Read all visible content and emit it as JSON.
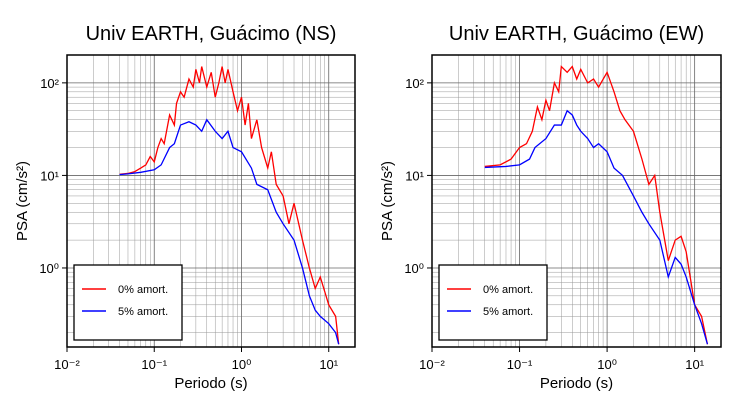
{
  "chart_data": [
    {
      "type": "line",
      "title": "Univ EARTH, Guácimo (NS)",
      "xlabel": "Periodo (s)",
      "ylabel": "PSA (cm/s²)",
      "xlog": true,
      "ylog": true,
      "grid": true,
      "legend": "lower left",
      "xlim": [
        0.01,
        20
      ],
      "ylim": [
        0.14,
        200
      ],
      "xticks": [
        {
          "value": 0.01,
          "label": "10⁻²"
        },
        {
          "value": 0.1,
          "label": "10⁻¹"
        },
        {
          "value": 1,
          "label": "10⁰"
        },
        {
          "value": 10,
          "label": "10¹"
        }
      ],
      "yticks": [
        {
          "value": 1,
          "label": "10⁰"
        },
        {
          "value": 10,
          "label": "10¹"
        },
        {
          "value": 100,
          "label": "10²"
        }
      ],
      "series": [
        {
          "name": "0% amort.",
          "color": "#ff0000",
          "x": [
            0.04,
            0.05,
            0.06,
            0.07,
            0.08,
            0.09,
            0.1,
            0.11,
            0.12,
            0.13,
            0.15,
            0.17,
            0.18,
            0.2,
            0.22,
            0.25,
            0.28,
            0.3,
            0.33,
            0.35,
            0.4,
            0.45,
            0.5,
            0.55,
            0.6,
            0.65,
            0.7,
            0.8,
            0.9,
            1.0,
            1.1,
            1.2,
            1.3,
            1.5,
            1.7,
            2.0,
            2.2,
            2.5,
            3,
            3.5,
            4,
            5,
            6,
            7,
            8,
            10,
            12,
            13
          ],
          "values": [
            10.3,
            10.5,
            11,
            12,
            13,
            16,
            14,
            20,
            25,
            22,
            45,
            35,
            60,
            80,
            70,
            110,
            90,
            140,
            100,
            150,
            90,
            130,
            70,
            100,
            150,
            100,
            140,
            80,
            50,
            70,
            35,
            60,
            25,
            40,
            20,
            12,
            18,
            8,
            6,
            3,
            5,
            2,
            1,
            0.6,
            0.8,
            0.4,
            0.3,
            0.15
          ]
        },
        {
          "name": "5% amort.",
          "color": "#0000ff",
          "x": [
            0.04,
            0.05,
            0.07,
            0.1,
            0.12,
            0.15,
            0.17,
            0.2,
            0.25,
            0.3,
            0.35,
            0.4,
            0.5,
            0.6,
            0.7,
            0.8,
            1.0,
            1.3,
            1.5,
            2,
            2.5,
            3,
            4,
            5,
            6,
            7,
            8,
            10,
            12,
            13
          ],
          "values": [
            10.2,
            10.4,
            10.8,
            11.5,
            13,
            20,
            22,
            35,
            38,
            35,
            30,
            40,
            30,
            25,
            30,
            20,
            18,
            12,
            8,
            7,
            4,
            3,
            2,
            1,
            0.5,
            0.35,
            0.3,
            0.25,
            0.2,
            0.15
          ]
        }
      ]
    },
    {
      "type": "line",
      "title": "Univ EARTH, Guácimo (EW)",
      "xlabel": "Periodo (s)",
      "ylabel": "PSA (cm/s²)",
      "xlog": true,
      "ylog": true,
      "grid": true,
      "legend": "lower left",
      "xlim": [
        0.01,
        20
      ],
      "ylim": [
        0.14,
        200
      ],
      "xticks": [
        {
          "value": 0.01,
          "label": "10⁻²"
        },
        {
          "value": 0.1,
          "label": "10⁻¹"
        },
        {
          "value": 1,
          "label": "10⁰"
        },
        {
          "value": 10,
          "label": "10¹"
        }
      ],
      "yticks": [
        {
          "value": 1,
          "label": "10⁰"
        },
        {
          "value": 10,
          "label": "10¹"
        },
        {
          "value": 100,
          "label": "10²"
        }
      ],
      "series": [
        {
          "name": "0% amort.",
          "color": "#ff0000",
          "x": [
            0.04,
            0.06,
            0.08,
            0.1,
            0.12,
            0.14,
            0.16,
            0.18,
            0.2,
            0.22,
            0.25,
            0.28,
            0.3,
            0.35,
            0.4,
            0.45,
            0.5,
            0.6,
            0.7,
            0.8,
            1,
            1.2,
            1.4,
            1.6,
            2,
            2.5,
            3,
            3.5,
            4,
            5,
            6,
            7,
            8,
            10,
            12,
            14
          ],
          "values": [
            12.5,
            13,
            15,
            20,
            22,
            30,
            55,
            40,
            65,
            50,
            100,
            80,
            150,
            130,
            150,
            110,
            140,
            100,
            110,
            90,
            130,
            80,
            50,
            40,
            30,
            15,
            8,
            10,
            4,
            1.2,
            2,
            2.2,
            1.5,
            0.4,
            0.3,
            0.15
          ]
        },
        {
          "name": "5% amort.",
          "color": "#0000ff",
          "x": [
            0.04,
            0.07,
            0.1,
            0.13,
            0.15,
            0.2,
            0.25,
            0.3,
            0.35,
            0.4,
            0.45,
            0.5,
            0.6,
            0.7,
            0.8,
            1,
            1.2,
            1.5,
            2,
            2.5,
            3,
            4,
            5,
            6,
            7,
            8,
            10,
            12,
            14
          ],
          "values": [
            12.2,
            12.5,
            13,
            15,
            20,
            25,
            35,
            35,
            50,
            45,
            35,
            30,
            25,
            20,
            22,
            18,
            12,
            10,
            6,
            4,
            3,
            2,
            0.8,
            1.3,
            1.1,
            0.8,
            0.4,
            0.25,
            0.15
          ]
        }
      ]
    }
  ]
}
